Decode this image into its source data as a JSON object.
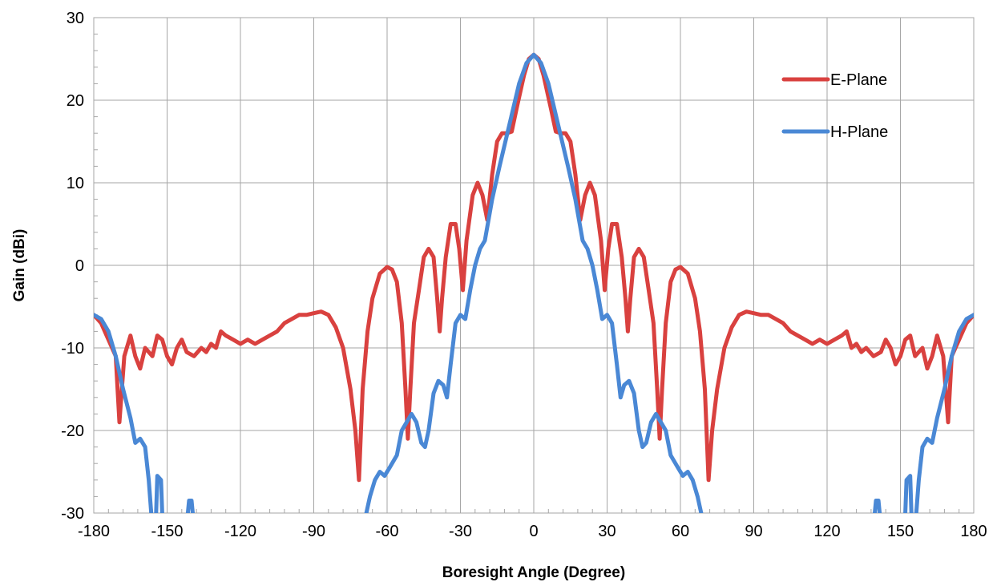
{
  "chart_data": {
    "type": "line",
    "title": "",
    "xlabel": "Boresight Angle (Degree)",
    "ylabel": "Gain (dBi)",
    "xlim": [
      -180,
      180
    ],
    "ylim": [
      -30,
      30
    ],
    "x_ticks": [
      "-180",
      "-150",
      "-120",
      "-90",
      "-60",
      "-30",
      "0",
      "30",
      "60",
      "90",
      "120",
      "150",
      "180"
    ],
    "y_ticks": [
      "-30",
      "-20",
      "-10",
      "0",
      "10",
      "20",
      "30"
    ],
    "grid": true,
    "legend_position": "top-right",
    "series": [
      {
        "name": "E-Plane",
        "color": "#d9413f",
        "points": [
          [
            -180,
            -6
          ],
          [
            -177,
            -7
          ],
          [
            -174,
            -9
          ],
          [
            -171,
            -11
          ],
          [
            -169.5,
            -19
          ],
          [
            -167.5,
            -11
          ],
          [
            -165,
            -8.5
          ],
          [
            -163,
            -11
          ],
          [
            -161,
            -12.5
          ],
          [
            -159,
            -10
          ],
          [
            -156,
            -11
          ],
          [
            -154,
            -8.5
          ],
          [
            -152,
            -9
          ],
          [
            -150,
            -11
          ],
          [
            -148,
            -12
          ],
          [
            -146,
            -10
          ],
          [
            -144,
            -9
          ],
          [
            -142,
            -10.5
          ],
          [
            -139,
            -11
          ],
          [
            -136,
            -10
          ],
          [
            -134,
            -10.5
          ],
          [
            -132,
            -9.5
          ],
          [
            -130,
            -10
          ],
          [
            -128,
            -8
          ],
          [
            -126,
            -8.5
          ],
          [
            -123,
            -9
          ],
          [
            -120,
            -9.5
          ],
          [
            -117,
            -9
          ],
          [
            -114,
            -9.5
          ],
          [
            -111,
            -9
          ],
          [
            -108,
            -8.5
          ],
          [
            -105,
            -8
          ],
          [
            -102,
            -7
          ],
          [
            -99,
            -6.5
          ],
          [
            -96,
            -6
          ],
          [
            -93,
            -6
          ],
          [
            -90,
            -5.8
          ],
          [
            -87,
            -5.6
          ],
          [
            -84,
            -6
          ],
          [
            -81,
            -7.5
          ],
          [
            -78,
            -10
          ],
          [
            -75,
            -15
          ],
          [
            -73,
            -20
          ],
          [
            -71.5,
            -26
          ],
          [
            -70,
            -15
          ],
          [
            -68,
            -8
          ],
          [
            -66,
            -4
          ],
          [
            -63,
            -1
          ],
          [
            -60,
            -0.2
          ],
          [
            -58,
            -0.5
          ],
          [
            -56,
            -2
          ],
          [
            -54,
            -7
          ],
          [
            -52.5,
            -15
          ],
          [
            -51.5,
            -21
          ],
          [
            -50.5,
            -15
          ],
          [
            -49,
            -7
          ],
          [
            -47,
            -3
          ],
          [
            -45,
            1
          ],
          [
            -43,
            2
          ],
          [
            -41,
            1
          ],
          [
            -39.5,
            -4
          ],
          [
            -38.5,
            -8
          ],
          [
            -37.5,
            -4
          ],
          [
            -36,
            1
          ],
          [
            -34,
            5
          ],
          [
            -32,
            5
          ],
          [
            -30.5,
            2
          ],
          [
            -29,
            -3
          ],
          [
            -27.5,
            3
          ],
          [
            -25,
            8.5
          ],
          [
            -23,
            10
          ],
          [
            -21,
            8.5
          ],
          [
            -19,
            5.5
          ],
          [
            -17,
            11
          ],
          [
            -15,
            15
          ],
          [
            -13,
            16
          ],
          [
            -11,
            16
          ],
          [
            -9,
            16.2
          ],
          [
            -7,
            19
          ],
          [
            -4,
            23
          ],
          [
            -2,
            25
          ],
          [
            0,
            25.5
          ],
          [
            2,
            25
          ],
          [
            4,
            23
          ],
          [
            7,
            19
          ],
          [
            9,
            16.2
          ],
          [
            11,
            16
          ],
          [
            13,
            16
          ],
          [
            15,
            15
          ],
          [
            17,
            11
          ],
          [
            19,
            5.5
          ],
          [
            21,
            8.5
          ],
          [
            23,
            10
          ],
          [
            25,
            8.5
          ],
          [
            27.5,
            3
          ],
          [
            29,
            -3
          ],
          [
            30.5,
            2
          ],
          [
            32,
            5
          ],
          [
            34,
            5
          ],
          [
            36,
            1
          ],
          [
            37.5,
            -4
          ],
          [
            38.5,
            -8
          ],
          [
            39.5,
            -4
          ],
          [
            41,
            1
          ],
          [
            43,
            2
          ],
          [
            45,
            1
          ],
          [
            47,
            -3
          ],
          [
            49,
            -7
          ],
          [
            50.5,
            -15
          ],
          [
            51.5,
            -21
          ],
          [
            52.5,
            -15
          ],
          [
            54,
            -7
          ],
          [
            56,
            -2
          ],
          [
            58,
            -0.5
          ],
          [
            60,
            -0.2
          ],
          [
            63,
            -1
          ],
          [
            66,
            -4
          ],
          [
            68,
            -8
          ],
          [
            70,
            -15
          ],
          [
            71.5,
            -26
          ],
          [
            73,
            -20
          ],
          [
            75,
            -15
          ],
          [
            78,
            -10
          ],
          [
            81,
            -7.5
          ],
          [
            84,
            -6
          ],
          [
            87,
            -5.6
          ],
          [
            90,
            -5.8
          ],
          [
            93,
            -6
          ],
          [
            96,
            -6
          ],
          [
            99,
            -6.5
          ],
          [
            102,
            -7
          ],
          [
            105,
            -8
          ],
          [
            108,
            -8.5
          ],
          [
            111,
            -9
          ],
          [
            114,
            -9.5
          ],
          [
            117,
            -9
          ],
          [
            120,
            -9.5
          ],
          [
            123,
            -9
          ],
          [
            126,
            -8.5
          ],
          [
            128,
            -8
          ],
          [
            130,
            -10
          ],
          [
            132,
            -9.5
          ],
          [
            134,
            -10.5
          ],
          [
            136,
            -10
          ],
          [
            139,
            -11
          ],
          [
            142,
            -10.5
          ],
          [
            144,
            -9
          ],
          [
            146,
            -10
          ],
          [
            148,
            -12
          ],
          [
            150,
            -11
          ],
          [
            152,
            -9
          ],
          [
            154,
            -8.5
          ],
          [
            156,
            -11
          ],
          [
            159,
            -10
          ],
          [
            161,
            -12.5
          ],
          [
            163,
            -11
          ],
          [
            165,
            -8.5
          ],
          [
            167.5,
            -11
          ],
          [
            169.5,
            -19
          ],
          [
            171,
            -11
          ],
          [
            174,
            -9
          ],
          [
            177,
            -7
          ],
          [
            180,
            -6
          ]
        ]
      },
      {
        "name": "H-Plane",
        "color": "#4a88d5",
        "segments": [
          [
            [
              -180,
              -6
            ],
            [
              -177,
              -6.5
            ],
            [
              -174,
              -8
            ],
            [
              -171,
              -11
            ],
            [
              -168,
              -15
            ],
            [
              -165,
              -18.5
            ],
            [
              -163,
              -21.5
            ],
            [
              -161,
              -21
            ],
            [
              -159,
              -22
            ],
            [
              -157.5,
              -26
            ],
            [
              -156.5,
              -30
            ]
          ],
          [
            [
              -154.5,
              -30
            ],
            [
              -154,
              -25.5
            ],
            [
              -152.5,
              -26
            ],
            [
              -152,
              -30
            ]
          ],
          [
            [
              -141.5,
              -30
            ],
            [
              -141,
              -28.5
            ],
            [
              -140,
              -28.5
            ],
            [
              -139.5,
              -30
            ]
          ],
          [
            [
              -68.5,
              -30
            ],
            [
              -67,
              -28
            ],
            [
              -65,
              -26
            ],
            [
              -63,
              -25
            ],
            [
              -61,
              -25.5
            ],
            [
              -59,
              -24.5
            ],
            [
              -56,
              -23
            ],
            [
              -54,
              -20
            ],
            [
              -52,
              -19
            ],
            [
              -50,
              -18
            ],
            [
              -48,
              -19
            ],
            [
              -46,
              -21.5
            ],
            [
              -44.5,
              -22
            ],
            [
              -43,
              -20
            ],
            [
              -41,
              -15.5
            ],
            [
              -39,
              -14
            ],
            [
              -37,
              -14.5
            ],
            [
              -35.5,
              -16
            ],
            [
              -34,
              -12
            ],
            [
              -32,
              -7
            ],
            [
              -30,
              -6
            ],
            [
              -28,
              -6.5
            ],
            [
              -26,
              -3
            ],
            [
              -24,
              0
            ],
            [
              -22,
              2
            ],
            [
              -20,
              3
            ],
            [
              -17,
              8
            ],
            [
              -14,
              12
            ],
            [
              -10,
              17
            ],
            [
              -6,
              22
            ],
            [
              -3,
              24.5
            ],
            [
              0,
              25.5
            ],
            [
              3,
              24.5
            ],
            [
              6,
              22
            ],
            [
              10,
              17
            ],
            [
              14,
              12
            ],
            [
              17,
              8
            ],
            [
              20,
              3
            ],
            [
              22,
              2
            ],
            [
              24,
              0
            ],
            [
              26,
              -3
            ],
            [
              28,
              -6.5
            ],
            [
              30,
              -6
            ],
            [
              32,
              -7
            ],
            [
              34,
              -12
            ],
            [
              35.5,
              -16
            ],
            [
              37,
              -14.5
            ],
            [
              39,
              -14
            ],
            [
              41,
              -15.5
            ],
            [
              43,
              -20
            ],
            [
              44.5,
              -22
            ],
            [
              46,
              -21.5
            ],
            [
              48,
              -19
            ],
            [
              50,
              -18
            ],
            [
              52,
              -19
            ],
            [
              54,
              -20
            ],
            [
              56,
              -23
            ],
            [
              59,
              -24.5
            ],
            [
              61,
              -25.5
            ],
            [
              63,
              -25
            ],
            [
              65,
              -26
            ],
            [
              67,
              -28
            ],
            [
              68.5,
              -30
            ]
          ],
          [
            [
              139.5,
              -30
            ],
            [
              140,
              -28.5
            ],
            [
              141,
              -28.5
            ],
            [
              141.5,
              -30
            ]
          ],
          [
            [
              152,
              -30
            ],
            [
              152.5,
              -26
            ],
            [
              154,
              -25.5
            ],
            [
              154.5,
              -30
            ]
          ],
          [
            [
              156.5,
              -30
            ],
            [
              157.5,
              -26
            ],
            [
              159,
              -22
            ],
            [
              161,
              -21
            ],
            [
              163,
              -21.5
            ],
            [
              165,
              -18.5
            ],
            [
              168,
              -15
            ],
            [
              171,
              -11
            ],
            [
              174,
              -8
            ],
            [
              177,
              -6.5
            ],
            [
              180,
              -6
            ]
          ]
        ]
      }
    ]
  }
}
